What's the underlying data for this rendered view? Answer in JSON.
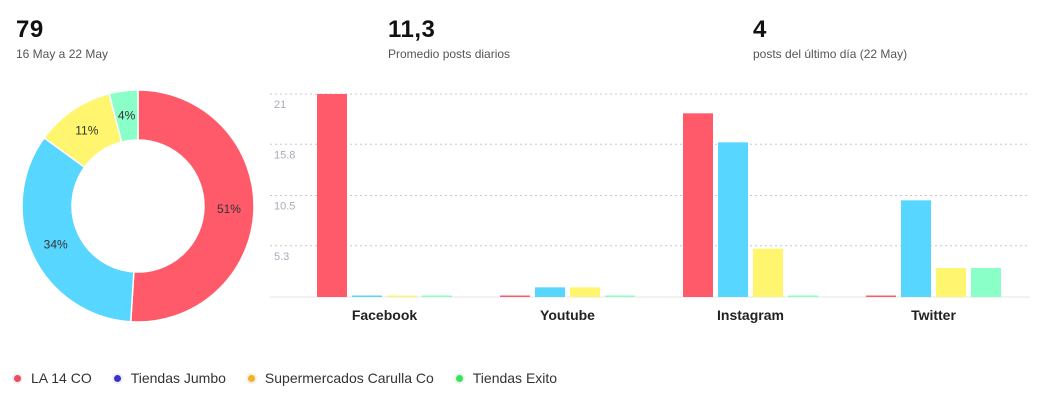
{
  "stats": [
    {
      "value": "79",
      "label": "16 May a 22 May"
    },
    {
      "value": "11,3",
      "label": "Promedio posts diarios"
    },
    {
      "value": "4",
      "label": "posts del último día (22 May)"
    }
  ],
  "legend": [
    {
      "label": "LA 14 CO",
      "color": "#ef4a5d"
    },
    {
      "label": "Tiendas Jumbo",
      "color": "#3b2fd6"
    },
    {
      "label": "Supermercados Carulla Co",
      "color": "#f4b21c"
    },
    {
      "label": "Tiendas Exito",
      "color": "#2ee85a"
    }
  ],
  "chart_data": [
    {
      "type": "pie",
      "style": "donut",
      "labels": [
        "LA 14 CO",
        "Tiendas Jumbo",
        "Supermercados Carulla Co",
        "Tiendas Exito"
      ],
      "values": [
        51,
        34,
        11,
        4
      ],
      "value_labels": [
        "51%",
        "34%",
        "11%",
        "4%"
      ],
      "colors": [
        "#ff5a6a",
        "#57d6ff",
        "#fff56e",
        "#8affc8"
      ]
    },
    {
      "type": "bar",
      "categories": [
        "Facebook",
        "Youtube",
        "Instagram",
        "Twitter"
      ],
      "series": [
        {
          "name": "LA 14 CO",
          "color": "#ff5a6a",
          "values": [
            21,
            0.1,
            19,
            0.1
          ]
        },
        {
          "name": "Tiendas Jumbo",
          "color": "#57d6ff",
          "values": [
            0.1,
            1,
            16,
            10
          ]
        },
        {
          "name": "Supermercados Carulla Co",
          "color": "#fff56e",
          "values": [
            0.1,
            1,
            5,
            3
          ]
        },
        {
          "name": "Tiendas Exito",
          "color": "#8affc8",
          "values": [
            0.1,
            0.1,
            0.1,
            3
          ]
        }
      ],
      "yticks": [
        "21",
        "15.8",
        "10.5",
        "5.3"
      ],
      "ytick_values": [
        21,
        15.8,
        10.5,
        5.3
      ],
      "ylim": [
        0,
        21
      ],
      "grid": true
    }
  ]
}
